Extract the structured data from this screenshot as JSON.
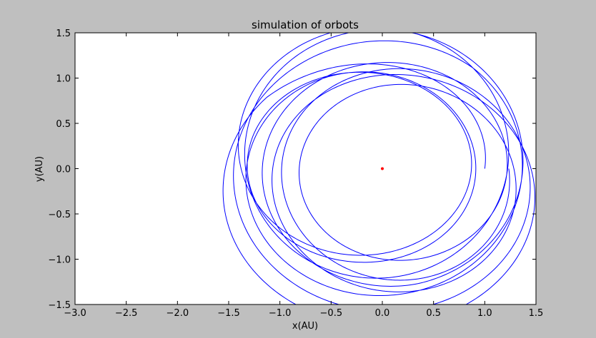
{
  "chart_data": {
    "type": "line",
    "title": "simulation of orbots",
    "xlabel": "x(AU)",
    "ylabel": "y(AU)",
    "xlim": [
      -3.0,
      1.5
    ],
    "ylim": [
      -1.5,
      1.5
    ],
    "xticks": [
      -3.0,
      -2.5,
      -2.0,
      -1.5,
      -1.0,
      -0.5,
      0.0,
      0.5,
      1.0,
      1.5
    ],
    "xtick_labels": [
      "−3.0",
      "−2.5",
      "−2.0",
      "−1.5",
      "−1.0",
      "−0.5",
      "0.0",
      "0.5",
      "1.0",
      "1.5"
    ],
    "yticks": [
      -1.5,
      -1.0,
      -0.5,
      0.0,
      0.5,
      1.0,
      1.5
    ],
    "ytick_labels": [
      "−1.5",
      "−1.0",
      "−0.5",
      "0.0",
      "0.5",
      "1.0",
      "1.5"
    ],
    "grid": false,
    "series": [
      {
        "color": "#0000ff",
        "orbit": {
          "start": [
            1.0,
            0.0
          ],
          "loops": 10,
          "a_min": 1.02,
          "a_max": 1.45,
          "ecc_max": 0.25
        }
      }
    ],
    "points": [
      {
        "x": 0.0,
        "y": 0.0,
        "color": "#ff0000"
      }
    ]
  }
}
